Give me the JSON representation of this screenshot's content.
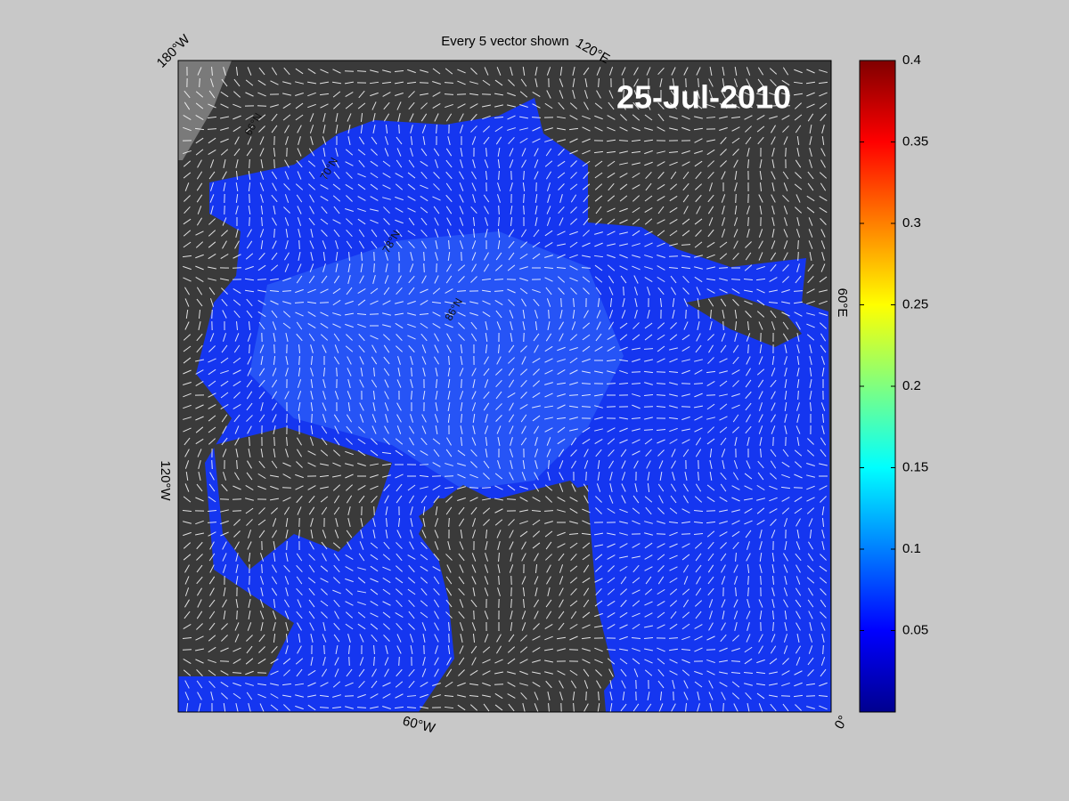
{
  "title": "Every 5 vector shown",
  "date_label": "25-Jul-2010",
  "map": {
    "longitude_labels": [
      "180°W",
      "120°E",
      "60°E",
      "0°",
      "60°W",
      "120°W"
    ],
    "latitude_labels": [
      "66°N",
      "70°N",
      "78°N",
      "86°N"
    ]
  },
  "colorbar": {
    "lim": [
      0,
      0.4
    ],
    "ticks": [
      0.05,
      0.1,
      0.15,
      0.2,
      0.25,
      0.3,
      0.35,
      0.4
    ]
  }
}
